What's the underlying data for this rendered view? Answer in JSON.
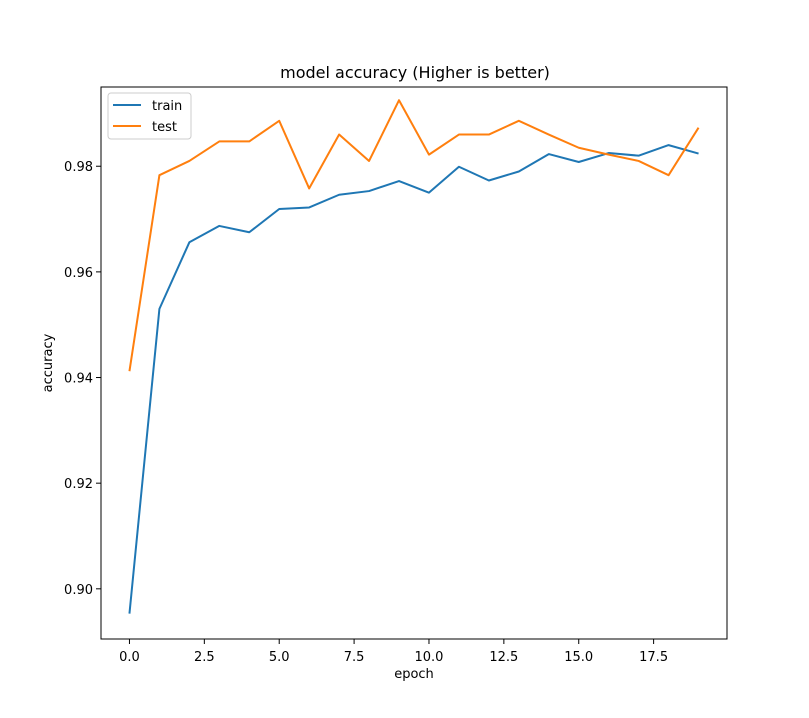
{
  "chart_data": {
    "type": "line",
    "title": "model accuracy (Higher is better)",
    "xlabel": "epoch",
    "ylabel": "accuracy",
    "xlim": [
      -0.95,
      19.95
    ],
    "ylim": [
      0.8905,
      0.995
    ],
    "xticks": [
      0,
      2.5,
      5,
      7.5,
      10,
      12.5,
      15,
      17.5
    ],
    "xtick_labels": [
      "0.0",
      "2.5",
      "5.0",
      "7.5",
      "10.0",
      "12.5",
      "15.0",
      "17.5"
    ],
    "yticks": [
      0.9,
      0.92,
      0.94,
      0.96,
      0.98
    ],
    "ytick_labels": [
      "0.90",
      "0.92",
      "0.94",
      "0.96",
      "0.98"
    ],
    "grid": false,
    "legend_position": "upper-left",
    "x": [
      0,
      1,
      2,
      3,
      4,
      5,
      6,
      7,
      8,
      9,
      10,
      11,
      12,
      13,
      14,
      15,
      16,
      17,
      18,
      19
    ],
    "series": [
      {
        "name": "train",
        "color": "#1f77b4",
        "values": [
          0.8953,
          0.953,
          0.9656,
          0.9687,
          0.9675,
          0.9719,
          0.9722,
          0.9746,
          0.9753,
          0.9772,
          0.975,
          0.9799,
          0.9773,
          0.979,
          0.9823,
          0.9808,
          0.9825,
          0.982,
          0.984,
          0.9824
        ]
      },
      {
        "name": "test",
        "color": "#ff7f0e",
        "values": [
          0.9412,
          0.9783,
          0.981,
          0.9847,
          0.9847,
          0.9886,
          0.9758,
          0.986,
          0.981,
          0.9925,
          0.9822,
          0.986,
          0.986,
          0.9886,
          0.986,
          0.9835,
          0.9822,
          0.981,
          0.9783,
          0.9873
        ]
      }
    ]
  }
}
